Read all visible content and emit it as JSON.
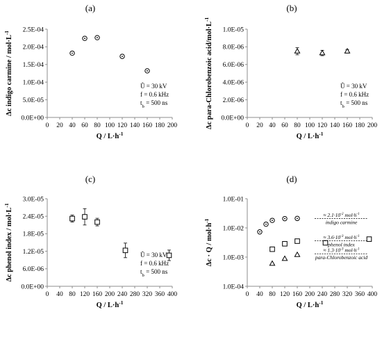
{
  "chart_data": [
    {
      "panel": "(a)",
      "type": "scatter",
      "marker": "circle-dot",
      "xlabel": "Q / L·h⁻¹",
      "ylabel": "Δc indigo carmine / mol·L⁻¹",
      "xlim": [
        0,
        200
      ],
      "ylim": [
        0,
        0.00025
      ],
      "x_ticks": [
        0,
        20,
        40,
        60,
        80,
        100,
        120,
        140,
        160,
        180,
        200
      ],
      "x_tick_labels": [
        "0",
        "20",
        "40",
        "60",
        "80",
        "100",
        "120",
        "140",
        "160",
        "180",
        "200"
      ],
      "y_ticks": [
        0,
        5e-05,
        0.0001,
        0.00015,
        0.0002,
        0.00025
      ],
      "y_tick_labels": [
        "0.0E+00",
        "5.0E-05",
        "1.0E-04",
        "1.5E-04",
        "2.0E-04",
        "2.5E-04"
      ],
      "points": [
        {
          "x": 40,
          "y": 0.000182
        },
        {
          "x": 60,
          "y": 0.000224
        },
        {
          "x": 80,
          "y": 0.000226
        },
        {
          "x": 120,
          "y": 0.000173
        },
        {
          "x": 160,
          "y": 0.000132
        }
      ],
      "info": [
        "Û = 30 kV",
        "f = 0.6 kHz",
        "t_b = 500 ns"
      ]
    },
    {
      "panel": "(b)",
      "type": "scatter",
      "marker": "triangle",
      "xlabel": "Q / L·h⁻¹",
      "ylabel": "Δc para-Chlorobenzoic acid/mol·L⁻¹",
      "xlim": [
        0,
        200
      ],
      "ylim": [
        0,
        1e-05
      ],
      "x_ticks": [
        0,
        20,
        40,
        60,
        80,
        100,
        120,
        140,
        160,
        180,
        200
      ],
      "x_tick_labels": [
        "0",
        "20",
        "40",
        "60",
        "80",
        "100",
        "120",
        "140",
        "160",
        "180",
        "200"
      ],
      "y_ticks": [
        0,
        2e-06,
        4e-06,
        6e-06,
        8e-06,
        1e-05
      ],
      "y_tick_labels": [
        "0.0E+00",
        "2.0E-06",
        "4.0E-06",
        "6.0E-06",
        "8.0E-06",
        "1.0E-05"
      ],
      "points": [
        {
          "x": 80,
          "y": 7.5e-06,
          "err": 4e-07
        },
        {
          "x": 120,
          "y": 7.3e-06,
          "err": 3e-07
        },
        {
          "x": 160,
          "y": 7.5e-06,
          "err": 2e-07
        }
      ],
      "info": [
        "Û = 30 kV",
        "f = 0.6 kHz",
        "t_b = 500 ns"
      ]
    },
    {
      "panel": "(c)",
      "type": "scatter",
      "marker": "square",
      "xlabel": "Q / L·h⁻¹",
      "ylabel": "Δc phenol index / mol·L⁻¹",
      "xlim": [
        0,
        400
      ],
      "ylim": [
        0,
        3e-05
      ],
      "x_ticks": [
        0,
        40,
        80,
        120,
        160,
        200,
        240,
        280,
        320,
        360,
        400
      ],
      "x_tick_labels": [
        "0",
        "40",
        "80",
        "120",
        "160",
        "200",
        "240",
        "280",
        "320",
        "360",
        "400"
      ],
      "y_ticks": [
        0,
        6e-06,
        1.2e-05,
        1.8e-05,
        2.4e-05,
        3e-05
      ],
      "y_tick_labels": [
        "0.0E+00",
        "6.0E-06",
        "1.2E-05",
        "1.8E-05",
        "2.4E-05",
        "3.0E-05"
      ],
      "points": [
        {
          "x": 80,
          "y": 2.32e-05,
          "err": 1.2e-06
        },
        {
          "x": 120,
          "y": 2.38e-05,
          "err": 2.8e-06
        },
        {
          "x": 160,
          "y": 2.2e-05,
          "err": 1.3e-06
        },
        {
          "x": 250,
          "y": 1.23e-05,
          "err": 2.5e-06
        },
        {
          "x": 390,
          "y": 1.06e-05,
          "err": 1.8e-06
        }
      ],
      "info": [
        "Û = 30 kV",
        "f = 0.6 kHz",
        "t_b = 500 ns"
      ]
    },
    {
      "panel": "(d)",
      "type": "scatter",
      "scale_y": "log",
      "xlabel": "Q / L·h⁻¹",
      "ylabel": "Δc · Q / mol·h⁻¹",
      "xlim": [
        0,
        400
      ],
      "ylim": [
        0.0001,
        0.1
      ],
      "x_ticks": [
        0,
        40,
        80,
        120,
        160,
        200,
        240,
        280,
        320,
        360,
        400
      ],
      "x_tick_labels": [
        "0",
        "40",
        "80",
        "120",
        "160",
        "200",
        "240",
        "280",
        "320",
        "360",
        "400"
      ],
      "y_ticks": [
        0.0001,
        0.001,
        0.01,
        0.1
      ],
      "y_tick_labels": [
        "1.0E-04",
        "1.0E-03",
        "1.0E-02",
        "1.0E-01"
      ],
      "series": [
        {
          "marker": "circle-dot",
          "points": [
            {
              "x": 40,
              "y": 0.0073
            },
            {
              "x": 60,
              "y": 0.0134
            },
            {
              "x": 80,
              "y": 0.0181
            },
            {
              "x": 120,
              "y": 0.0208
            },
            {
              "x": 160,
              "y": 0.0211
            }
          ]
        },
        {
          "marker": "square",
          "points": [
            {
              "x": 80,
              "y": 0.00186
            },
            {
              "x": 120,
              "y": 0.00286
            },
            {
              "x": 160,
              "y": 0.00352
            },
            {
              "x": 250,
              "y": 0.00308
            },
            {
              "x": 390,
              "y": 0.00413
            }
          ]
        },
        {
          "marker": "triangle",
          "points": [
            {
              "x": 80,
              "y": 0.0006
            },
            {
              "x": 120,
              "y": 0.00088
            },
            {
              "x": 160,
              "y": 0.0012
            }
          ]
        }
      ],
      "annotations": [
        {
          "value": "≈ 2.1·10⁻² mol·h⁻¹",
          "name": "indigo carmine",
          "y": 0.021
        },
        {
          "value": "≈ 3.6·10⁻³ mol·h⁻¹",
          "name": "phenol index",
          "y": 0.0036
        },
        {
          "value": "≈ 1.3·10⁻³ mol·h⁻¹",
          "name": "para-Chlorobenzoic acid",
          "y": 0.0013
        }
      ]
    }
  ]
}
